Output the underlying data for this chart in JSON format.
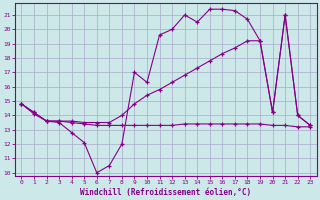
{
  "xlabel": "Windchill (Refroidissement éolien,°C)",
  "background_color": "#cce8e8",
  "grid_color": "#aaaacc",
  "line_color": "#880088",
  "xlim": [
    -0.5,
    23.5
  ],
  "ylim": [
    9.8,
    21.8
  ],
  "yticks": [
    10,
    11,
    12,
    13,
    14,
    15,
    16,
    17,
    18,
    19,
    20,
    21
  ],
  "xticks": [
    0,
    1,
    2,
    3,
    4,
    5,
    6,
    7,
    8,
    9,
    10,
    11,
    12,
    13,
    14,
    15,
    16,
    17,
    18,
    19,
    20,
    21,
    22,
    23
  ],
  "line1_x": [
    0,
    1,
    2,
    3,
    4,
    5,
    6,
    7,
    8,
    9,
    10,
    11,
    12,
    13,
    14,
    15,
    16,
    17,
    18,
    19,
    20,
    21,
    22,
    23
  ],
  "line1_y": [
    14.8,
    14.1,
    13.6,
    13.5,
    12.8,
    12.1,
    10.0,
    10.5,
    12.0,
    17.0,
    16.3,
    19.6,
    20.0,
    21.0,
    20.5,
    21.4,
    21.4,
    21.3,
    20.7,
    19.2,
    14.2,
    21.0,
    14.0,
    13.3
  ],
  "line2_x": [
    0,
    1,
    2,
    3,
    4,
    5,
    6,
    7,
    8,
    9,
    10,
    11,
    12,
    13,
    14,
    15,
    16,
    17,
    18,
    19,
    20,
    21,
    22,
    23
  ],
  "line2_y": [
    14.8,
    14.2,
    13.6,
    13.6,
    13.6,
    13.5,
    13.5,
    13.5,
    14.0,
    14.8,
    15.4,
    15.8,
    16.3,
    16.8,
    17.3,
    17.8,
    18.3,
    18.7,
    19.2,
    19.2,
    14.2,
    21.0,
    14.0,
    13.3
  ],
  "line3_x": [
    0,
    1,
    2,
    3,
    4,
    5,
    6,
    7,
    8,
    9,
    10,
    11,
    12,
    13,
    14,
    15,
    16,
    17,
    18,
    19,
    20,
    21,
    22,
    23
  ],
  "line3_y": [
    14.8,
    14.2,
    13.6,
    13.6,
    13.5,
    13.4,
    13.3,
    13.3,
    13.3,
    13.3,
    13.3,
    13.3,
    13.3,
    13.4,
    13.4,
    13.4,
    13.4,
    13.4,
    13.4,
    13.4,
    13.3,
    13.3,
    13.2,
    13.2
  ]
}
